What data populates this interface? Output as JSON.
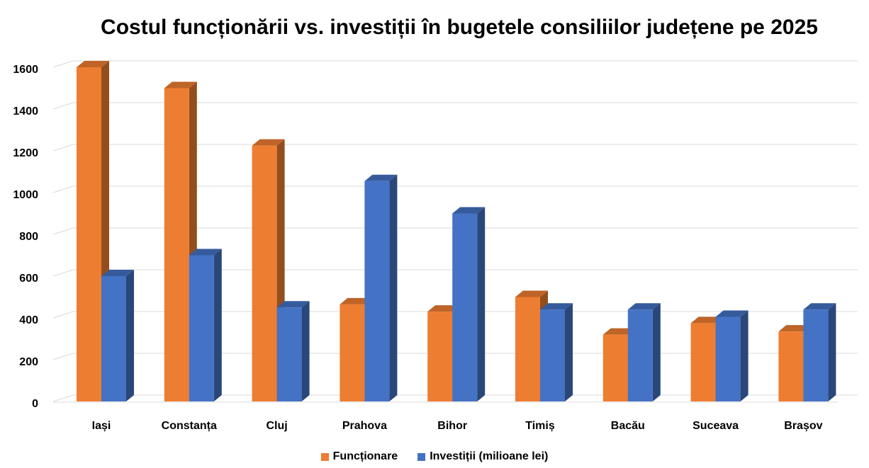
{
  "chart_data": {
    "type": "bar",
    "title": "Costul funcționării vs. investiții în bugetele consiliilor județene pe 2025",
    "categories": [
      "Iași",
      "Constanța",
      "Cluj",
      "Prahova",
      "Bihor",
      "Timiș",
      "Bacău",
      "Suceava",
      "Brașov"
    ],
    "series": [
      {
        "name": "Funcționare",
        "color": "#ED7D31",
        "values": [
          1600,
          1500,
          1225,
          465,
          430,
          500,
          320,
          375,
          335
        ]
      },
      {
        "name": "Investiții (milioane lei)",
        "color": "#4472C4",
        "values": [
          600,
          700,
          450,
          1055,
          900,
          440,
          440,
          405,
          440
        ]
      }
    ],
    "yticks": [
      0,
      200,
      400,
      600,
      800,
      1000,
      1200,
      1400,
      1600
    ],
    "ylim": [
      0,
      1700
    ],
    "grid": true,
    "legend_position": "bottom",
    "chart_style": "3d-column"
  }
}
